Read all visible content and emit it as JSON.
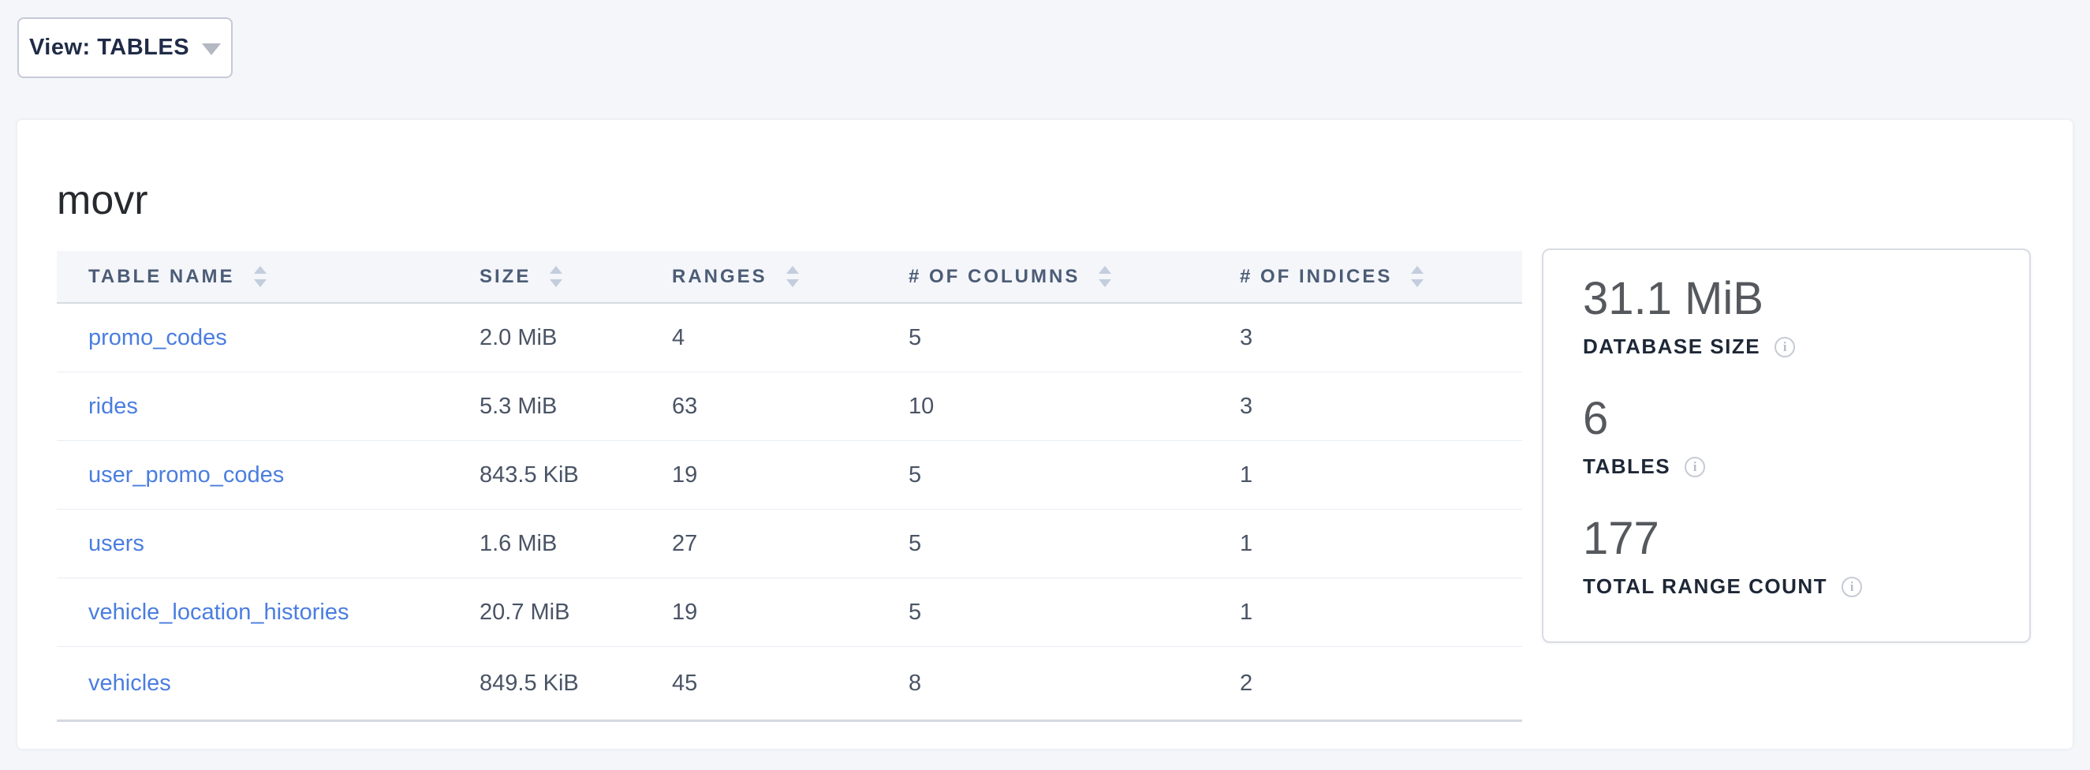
{
  "view_selector": {
    "label": "View: TABLES",
    "caret_icon": "caret-down"
  },
  "database": {
    "name": "movr",
    "table": {
      "columns": [
        {
          "label": "TABLE NAME"
        },
        {
          "label": "SIZE"
        },
        {
          "label": "RANGES"
        },
        {
          "label": "# OF COLUMNS"
        },
        {
          "label": "# OF INDICES"
        }
      ],
      "rows": [
        {
          "name": "promo_codes",
          "size": "2.0 MiB",
          "ranges": "4",
          "columns": "5",
          "indices": "3"
        },
        {
          "name": "rides",
          "size": "5.3 MiB",
          "ranges": "63",
          "columns": "10",
          "indices": "3"
        },
        {
          "name": "user_promo_codes",
          "size": "843.5 KiB",
          "ranges": "19",
          "columns": "5",
          "indices": "1"
        },
        {
          "name": "users",
          "size": "1.6 MiB",
          "ranges": "27",
          "columns": "5",
          "indices": "1"
        },
        {
          "name": "vehicle_location_histories",
          "size": "20.7 MiB",
          "ranges": "19",
          "columns": "5",
          "indices": "1"
        },
        {
          "name": "vehicles",
          "size": "849.5 KiB",
          "ranges": "45",
          "columns": "8",
          "indices": "2"
        }
      ]
    },
    "summary": [
      {
        "value": "31.1 MiB",
        "label": "DATABASE SIZE",
        "info_icon": "info-circle"
      },
      {
        "value": "6",
        "label": "TABLES",
        "info_icon": "info-circle"
      },
      {
        "value": "177",
        "label": "TOTAL RANGE COUNT",
        "info_icon": "info-circle"
      }
    ]
  },
  "colors": {
    "page_background": "#f4f6fa",
    "card_background": "#ffffff",
    "link_blue": "#4a7de0",
    "header_text": "#4c5c76",
    "cell_text": "#4a5465",
    "stat_value_gray": "#55585d",
    "label_navy": "#1d2736",
    "border_gray": "#d9dce3"
  }
}
